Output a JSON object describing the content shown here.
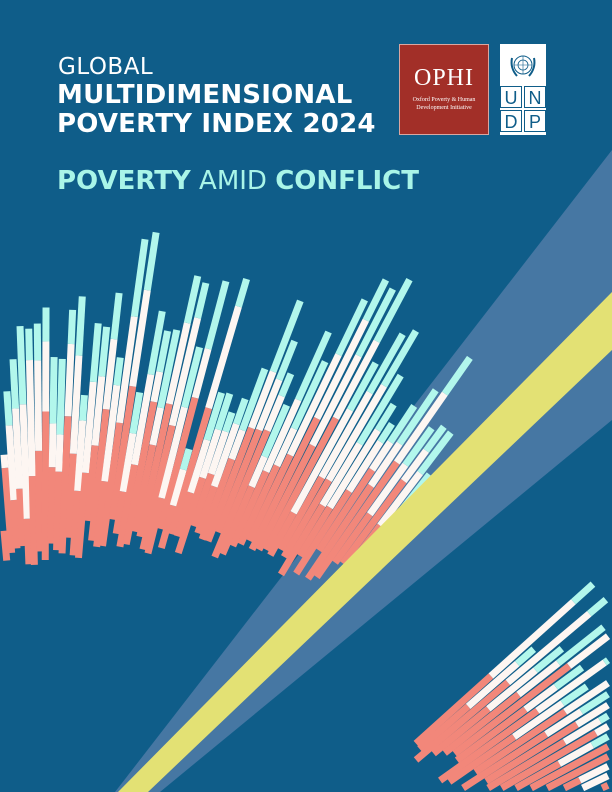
{
  "cover": {
    "kicker": "GLOBAL",
    "title_line1": "MULTIDIMENSIONAL",
    "title_line2": "POVERTY INDEX 2024",
    "subtitle_bold1": "POVERTY",
    "subtitle_mid": " AMID ",
    "subtitle_bold2": "CONFLICT"
  },
  "logos": {
    "ophi": {
      "name": "OPHI",
      "line1": "Oxford Poverty & Human",
      "line2": "Development Initiative"
    },
    "undp": {
      "letters": [
        "U",
        "N",
        "D",
        "P"
      ]
    }
  },
  "colors": {
    "background": "#0f5d89",
    "coral": "#f2877a",
    "white": "#fdf6f2",
    "mint": "#b2f7ec",
    "yellow": "#e3e174",
    "beam": "#4677a3",
    "ophi_red": "#a22f28"
  }
}
